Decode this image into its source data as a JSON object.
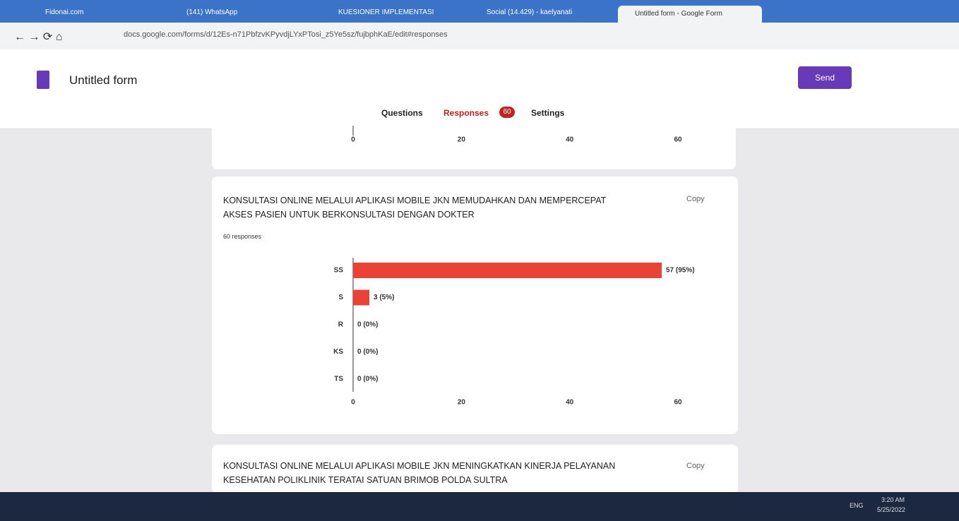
{
  "browser": {
    "tabs": [
      "Fidonai.com",
      "(141) WhatsApp",
      "KUESIONER IMPLEMENTASI",
      "Social (14.429) - kaelyanati",
      "Untitled form - Google Form"
    ],
    "url": "docs.google.com/forms/d/12Es-n71PbfzvKPyvdjLYxPTosi_z5Ye5sz/fujbphKaE/edit#responses"
  },
  "form": {
    "title": "Untitled form",
    "send": "Send",
    "nav": {
      "questions": "Questions",
      "responses": "Responses",
      "badge": "60",
      "settings": "Settings"
    }
  },
  "previous_question_axis": {
    "xlim": [
      0,
      60
    ],
    "xticks": [
      0,
      20,
      40,
      60
    ]
  },
  "chart_data": {
    "type": "bar",
    "orientation": "horizontal",
    "title": "KONSULTASI ONLINE MELALUI APLIKASI MOBILE JKN MEMUDAHKAN DAN MEMPERCEPAT AKSES PASIEN UNTUK BERKONSULTASI DENGAN DOKTER",
    "subtitle": "60 responses",
    "copy": "Copy",
    "categories": [
      "SS",
      "S",
      "R",
      "KS",
      "TS"
    ],
    "values": [
      57,
      3,
      0,
      0,
      0
    ],
    "value_labels": [
      "57 (95%)",
      "3 (5%)",
      "0 (0%)",
      "0 (0%)",
      "0 (0%)"
    ],
    "color": "#ea4335",
    "xlim": [
      0,
      60
    ],
    "xticks": [
      0,
      20,
      40,
      60
    ]
  },
  "next_question": {
    "title": "KONSULTASI ONLINE MELALUI APLIKASI MOBILE JKN MENINGKATKAN KINERJA PELAYANAN KESEHATAN POLIKLINIK TERATAI SATUAN BRIMOB POLDA SULTRA",
    "copy": "Copy"
  },
  "taskbar": {
    "language": "ENG",
    "time": "3:20 AM",
    "date": "5/25/2022"
  }
}
